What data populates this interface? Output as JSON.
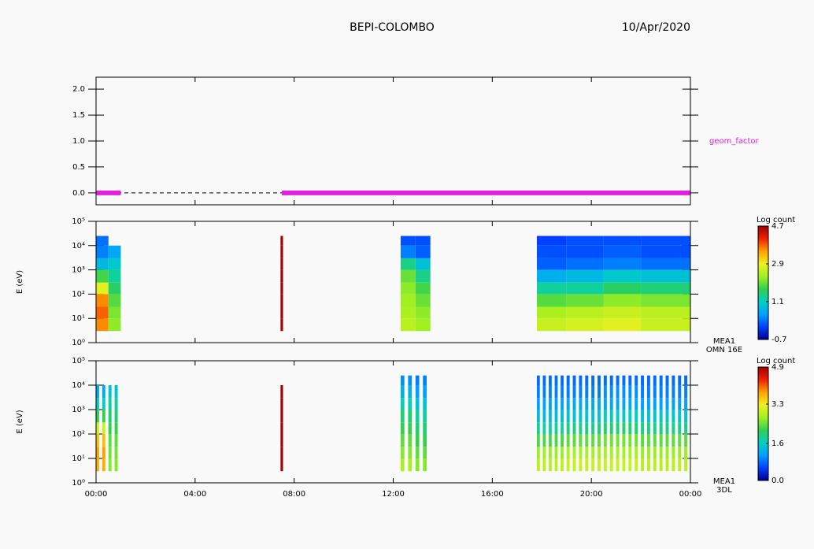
{
  "title": "BEPI-COLOMBO",
  "date": "10/Apr/2020",
  "chart_data": [
    {
      "type": "line",
      "series": [
        {
          "name": "geom_factor",
          "color": "#e020e0",
          "x": [
            0,
            1,
            4,
            7.5,
            24
          ],
          "values": [
            0,
            0,
            null,
            0,
            0
          ]
        }
      ],
      "xlim": [
        0,
        24
      ],
      "ylim": [
        -0.23,
        2.23
      ],
      "yticks": [
        {
          "value": 0,
          "label": "0.0"
        },
        0.5,
        {
          "value": 1,
          "label": "1.0"
        },
        1.5,
        {
          "value": 2,
          "label": "2.0"
        }
      ]
    },
    {
      "type": "heatmap",
      "ylabel": "E (eV)",
      "log_y": true,
      "striped": false,
      "instrument": "MEA1",
      "mode": "OMN 16E",
      "colorbar_title": "Log count",
      "colormap": [
        "#000090",
        "#0040ff",
        "#00a0ff",
        "#00d0c0",
        "#30d050",
        "#a0f020",
        "#f0f020",
        "#ffa000",
        "#f02000",
        "#a00000"
      ],
      "xlim": [
        0,
        24
      ],
      "ylim": [
        1,
        100000
      ],
      "yticks": [
        {
          "value": 1,
          "label": "10⁰"
        },
        {
          "value": 10,
          "label": "10¹"
        },
        {
          "value": 100,
          "label": "10²"
        },
        {
          "value": 1000,
          "label": "10³"
        },
        {
          "value": 10000,
          "label": "10⁴"
        },
        {
          "value": 100000,
          "label": "10⁵"
        }
      ],
      "x_bins": [
        0,
        0.5,
        1,
        7.45,
        7.55,
        12.3,
        12.9,
        13.5,
        17.8,
        19,
        20.5,
        22,
        24
      ],
      "y_bins": [
        3,
        10,
        30,
        100,
        300,
        1000,
        3000,
        10000,
        25000
      ],
      "z": [
        [
          3.6,
          3.8,
          3.6,
          2.8,
          1.8,
          0.8,
          0.3,
          0.2
        ],
        [
          2.2,
          2.1,
          1.9,
          1.6,
          1.3,
          1.0,
          0.6,
          null
        ],
        [
          null,
          null,
          null,
          null,
          null,
          null,
          null,
          null
        ],
        [
          4.7,
          4.7,
          4.7,
          4.7,
          4.7,
          4.7,
          4.7,
          4.7
        ],
        [
          null,
          null,
          null,
          null,
          null,
          null,
          null,
          null
        ],
        [
          2.5,
          2.4,
          2.3,
          2.2,
          2.0,
          1.4,
          0.3,
          0.0
        ],
        [
          2.3,
          2.2,
          2.0,
          1.8,
          1.4,
          0.9,
          0.1,
          0.0
        ],
        [
          null,
          null,
          null,
          null,
          null,
          null,
          null,
          null
        ],
        [
          2.6,
          2.4,
          1.9,
          1.3,
          0.7,
          0.1,
          0.0,
          -0.1
        ],
        [
          2.7,
          2.5,
          2.0,
          1.3,
          0.8,
          0.2,
          0.0,
          0.0
        ],
        [
          2.8,
          2.6,
          2.2,
          1.6,
          1.0,
          0.3,
          0.1,
          0.0
        ],
        [
          2.6,
          2.5,
          2.1,
          1.5,
          0.9,
          0.2,
          0.0,
          0.0
        ]
      ],
      "zlim": [
        -0.7,
        4.7
      ],
      "zticks": [
        4.7,
        2.9,
        1.1,
        -0.7
      ]
    },
    {
      "type": "heatmap",
      "ylabel": "E (eV)",
      "log_y": true,
      "striped": true,
      "instrument": "MEA1",
      "mode": "3DL",
      "colorbar_title": "Log count",
      "colormap": [
        "#000090",
        "#0040ff",
        "#00a0ff",
        "#00d0c0",
        "#30d050",
        "#a0f020",
        "#f0f020",
        "#ffa000",
        "#f02000",
        "#a00000"
      ],
      "xlim": [
        0,
        24
      ],
      "ylim": [
        1,
        100000
      ],
      "yticks": [
        {
          "value": 1,
          "label": "10⁰"
        },
        {
          "value": 10,
          "label": "10¹"
        },
        {
          "value": 100,
          "label": "10²"
        },
        {
          "value": 1000,
          "label": "10³"
        },
        {
          "value": 10000,
          "label": "10⁴"
        },
        {
          "value": 100000,
          "label": "10⁵"
        }
      ],
      "xticks": [
        {
          "value": 0,
          "label": "00:00"
        },
        {
          "value": 4,
          "label": "04:00"
        },
        {
          "value": 8,
          "label": "08:00"
        },
        {
          "value": 12,
          "label": "12:00"
        },
        {
          "value": 16,
          "label": "16:00"
        },
        {
          "value": 20,
          "label": "20:00"
        },
        {
          "value": 24,
          "label": "00:00"
        }
      ],
      "x_bins": [
        0,
        0.5,
        1,
        7.45,
        7.55,
        12.3,
        12.9,
        13.5,
        17.8,
        19,
        20.5,
        22,
        24
      ],
      "y_bins": [
        3,
        10,
        30,
        100,
        300,
        1000,
        3000,
        10000,
        25000
      ],
      "z": [
        [
          3.7,
          3.8,
          3.6,
          3.0,
          2.2,
          1.6,
          1.2,
          null
        ],
        [
          2.6,
          2.5,
          2.4,
          2.2,
          2.0,
          1.8,
          1.5,
          null
        ],
        [
          null,
          null,
          null,
          null,
          null,
          null,
          null,
          null
        ],
        [
          4.9,
          4.9,
          4.9,
          4.9,
          4.9,
          4.9,
          4.9,
          null
        ],
        [
          null,
          null,
          null,
          null,
          null,
          null,
          null,
          null
        ],
        [
          2.8,
          2.6,
          2.4,
          2.2,
          2.0,
          1.7,
          1.3,
          1.0
        ],
        [
          2.6,
          2.4,
          2.2,
          2.0,
          1.8,
          1.5,
          1.1,
          0.9
        ],
        [
          null,
          null,
          null,
          null,
          null,
          null,
          null,
          null
        ],
        [
          2.9,
          2.7,
          2.3,
          1.8,
          1.4,
          1.1,
          0.9,
          0.8
        ],
        [
          3.0,
          2.8,
          2.4,
          1.9,
          1.5,
          1.2,
          0.9,
          0.8
        ],
        [
          3.0,
          2.8,
          2.5,
          2.0,
          1.6,
          1.2,
          1.0,
          0.8
        ],
        [
          2.9,
          2.7,
          2.4,
          1.9,
          1.5,
          1.1,
          0.9,
          0.8
        ]
      ],
      "zlim": [
        0,
        4.9
      ],
      "zticks": [
        4.9,
        3.3,
        1.6,
        {
          "value": 0,
          "label": "0.0"
        }
      ]
    }
  ]
}
